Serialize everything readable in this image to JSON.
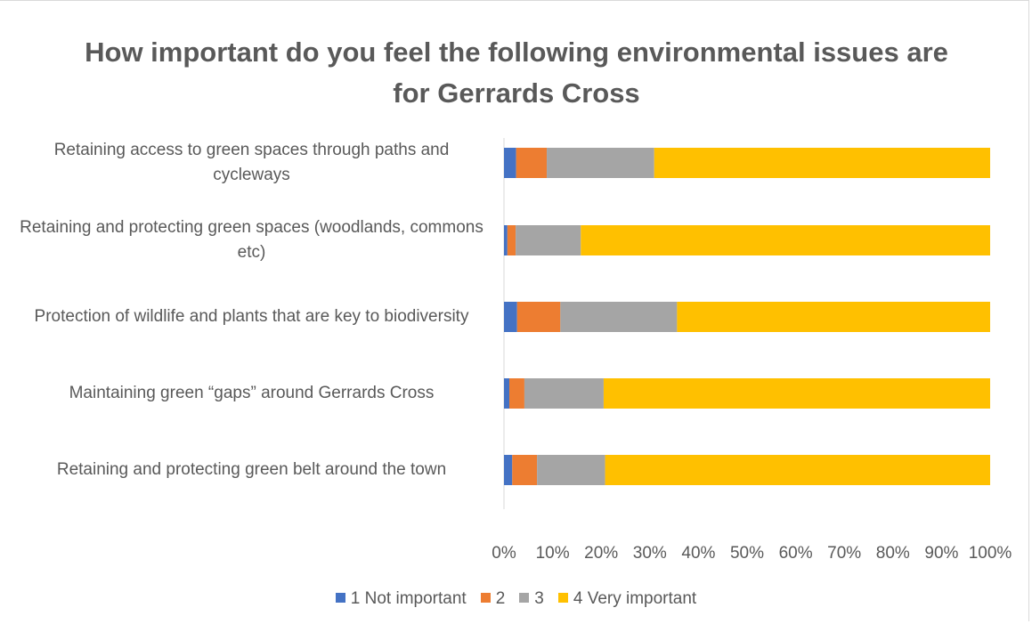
{
  "chart_data": {
    "type": "bar",
    "orientation": "horizontal",
    "stacked": "percent",
    "title": "How important do you feel the following environmental issues are for Gerrards Cross",
    "categories": [
      "Retaining access to green spaces through paths and cycleways",
      "Retaining and protecting green spaces (woodlands, commons etc)",
      "Protection of wildlife and plants that are key to biodiversity",
      "Maintaining green “gaps” around Gerrards Cross",
      "Retaining and protecting green belt around the town"
    ],
    "series": [
      {
        "name": "1 Not important",
        "color": "#4472c4",
        "values": [
          2.5,
          0.7,
          2.7,
          1.1,
          1.7
        ]
      },
      {
        "name": "2",
        "color": "#ed7d31",
        "values": [
          6.3,
          1.7,
          8.9,
          3.1,
          5.1
        ]
      },
      {
        "name": "3",
        "color": "#a5a5a5",
        "values": [
          22.1,
          13.4,
          24.0,
          16.3,
          14.0
        ]
      },
      {
        "name": "4 Very important",
        "color": "#ffc000",
        "values": [
          69.1,
          84.2,
          64.4,
          79.5,
          79.2
        ]
      }
    ],
    "x_ticks": [
      "0%",
      "10%",
      "20%",
      "30%",
      "40%",
      "50%",
      "60%",
      "70%",
      "80%",
      "90%",
      "100%"
    ],
    "xlim": [
      0,
      100
    ],
    "grid": false,
    "legend": "bottom"
  }
}
